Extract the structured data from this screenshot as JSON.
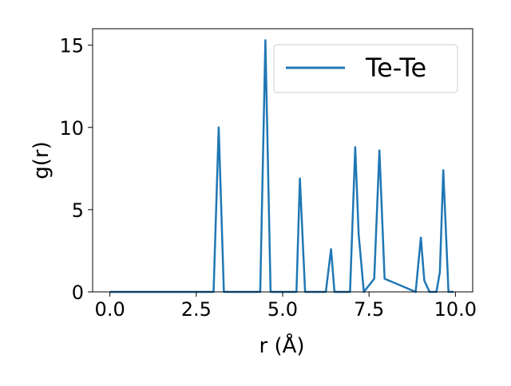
{
  "chart_data": {
    "type": "line",
    "title": "",
    "xlabel": "r (Å)",
    "ylabel": "g(r)",
    "xlim": [
      -0.5,
      10.5
    ],
    "ylim": [
      0,
      16.0
    ],
    "xticks": [
      0.0,
      2.5,
      5.0,
      7.5,
      10.0
    ],
    "xtick_labels": [
      "0.0",
      "2.5",
      "5.0",
      "7.5",
      "10.0"
    ],
    "yticks": [
      0,
      5,
      10,
      15
    ],
    "ytick_labels": [
      "0",
      "5",
      "10",
      "15"
    ],
    "grid": false,
    "legend_position": "top-right",
    "series": [
      {
        "name": "Te-Te",
        "color": "#1f77b4",
        "x": [
          0.0,
          3.0,
          3.15,
          3.3,
          4.35,
          4.5,
          4.65,
          5.4,
          5.5,
          5.65,
          6.25,
          6.4,
          6.5,
          6.95,
          7.1,
          7.2,
          7.35,
          7.65,
          7.8,
          7.95,
          8.85,
          9.0,
          9.1,
          9.25,
          9.45,
          9.55,
          9.65,
          9.8,
          9.95
        ],
        "y": [
          0.0,
          0.0,
          10.0,
          0.0,
          0.0,
          15.3,
          0.0,
          0.0,
          6.9,
          0.0,
          0.0,
          2.6,
          0.0,
          0.0,
          8.8,
          3.5,
          0.0,
          0.8,
          8.6,
          0.8,
          0.0,
          3.3,
          0.7,
          0.0,
          0.0,
          1.2,
          7.4,
          0.0,
          0.0
        ]
      }
    ]
  }
}
